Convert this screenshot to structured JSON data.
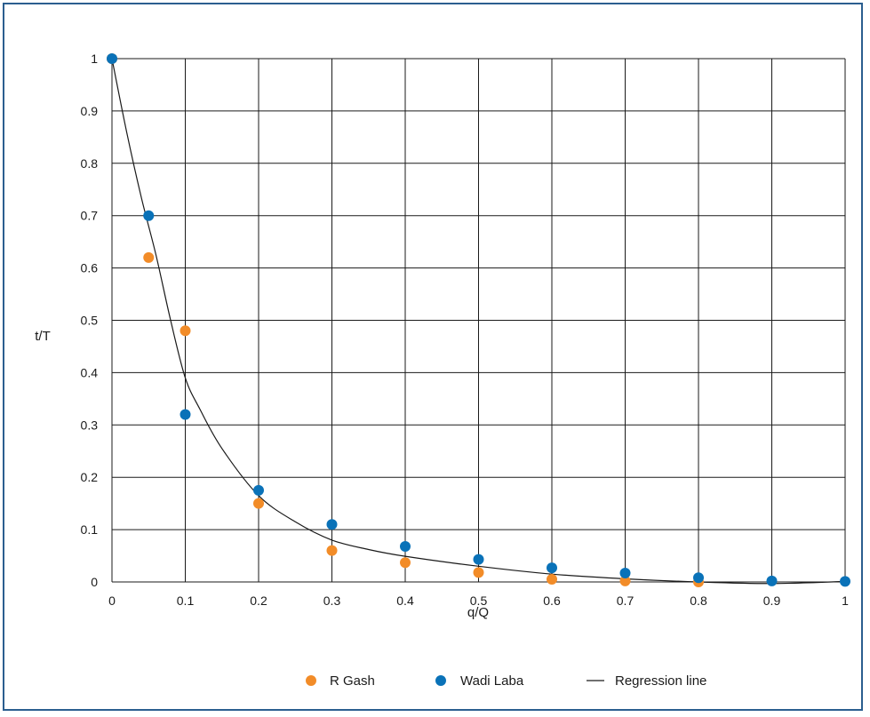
{
  "chart_data": {
    "type": "scatter",
    "xlabel": "q/Q",
    "ylabel": "t/T",
    "xlim": [
      0,
      1
    ],
    "ylim": [
      0,
      1
    ],
    "x_ticks": [
      "0",
      "0.1",
      "0.2",
      "0.3",
      "0.4",
      "0.5",
      "0.6",
      "0.7",
      "0.8",
      "0.9",
      "1"
    ],
    "y_ticks": [
      "0",
      "0.1",
      "0.2",
      "0.3",
      "0.4",
      "0.5",
      "0.6",
      "0.7",
      "0.8",
      "0.9",
      "1"
    ],
    "grid": true,
    "legend_position": "bottom",
    "series": [
      {
        "name": "R Gash",
        "kind": "scatter",
        "color": "#f28c28",
        "points": [
          [
            0,
            1.0
          ],
          [
            0.05,
            0.62
          ],
          [
            0.1,
            0.48
          ],
          [
            0.2,
            0.15
          ],
          [
            0.3,
            0.06
          ],
          [
            0.4,
            0.037
          ],
          [
            0.5,
            0.018
          ],
          [
            0.6,
            0.005
          ],
          [
            0.7,
            0.002
          ],
          [
            0.8,
            0.0
          ]
        ]
      },
      {
        "name": "Wadi Laba",
        "kind": "scatter",
        "color": "#0a72b8",
        "points": [
          [
            0,
            1.0
          ],
          [
            0.05,
            0.7
          ],
          [
            0.1,
            0.32
          ],
          [
            0.2,
            0.175
          ],
          [
            0.3,
            0.11
          ],
          [
            0.4,
            0.068
          ],
          [
            0.5,
            0.043
          ],
          [
            0.6,
            0.027
          ],
          [
            0.7,
            0.017
          ],
          [
            0.8,
            0.008
          ],
          [
            0.9,
            0.002
          ],
          [
            1.0,
            0.001
          ]
        ]
      },
      {
        "name": "Regression line",
        "kind": "line",
        "color": "#1a1a1a",
        "points": [
          [
            0,
            1.0
          ],
          [
            0.02,
            0.86
          ],
          [
            0.04,
            0.735
          ],
          [
            0.06,
            0.625
          ],
          [
            0.08,
            0.5
          ],
          [
            0.1,
            0.39
          ],
          [
            0.12,
            0.33
          ],
          [
            0.15,
            0.255
          ],
          [
            0.2,
            0.165
          ],
          [
            0.25,
            0.115
          ],
          [
            0.3,
            0.08
          ],
          [
            0.35,
            0.062
          ],
          [
            0.4,
            0.049
          ],
          [
            0.5,
            0.03
          ],
          [
            0.6,
            0.015
          ],
          [
            0.7,
            0.006
          ],
          [
            0.8,
            0.0
          ],
          [
            0.9,
            -0.003
          ],
          [
            1.0,
            0.001
          ]
        ]
      }
    ]
  }
}
